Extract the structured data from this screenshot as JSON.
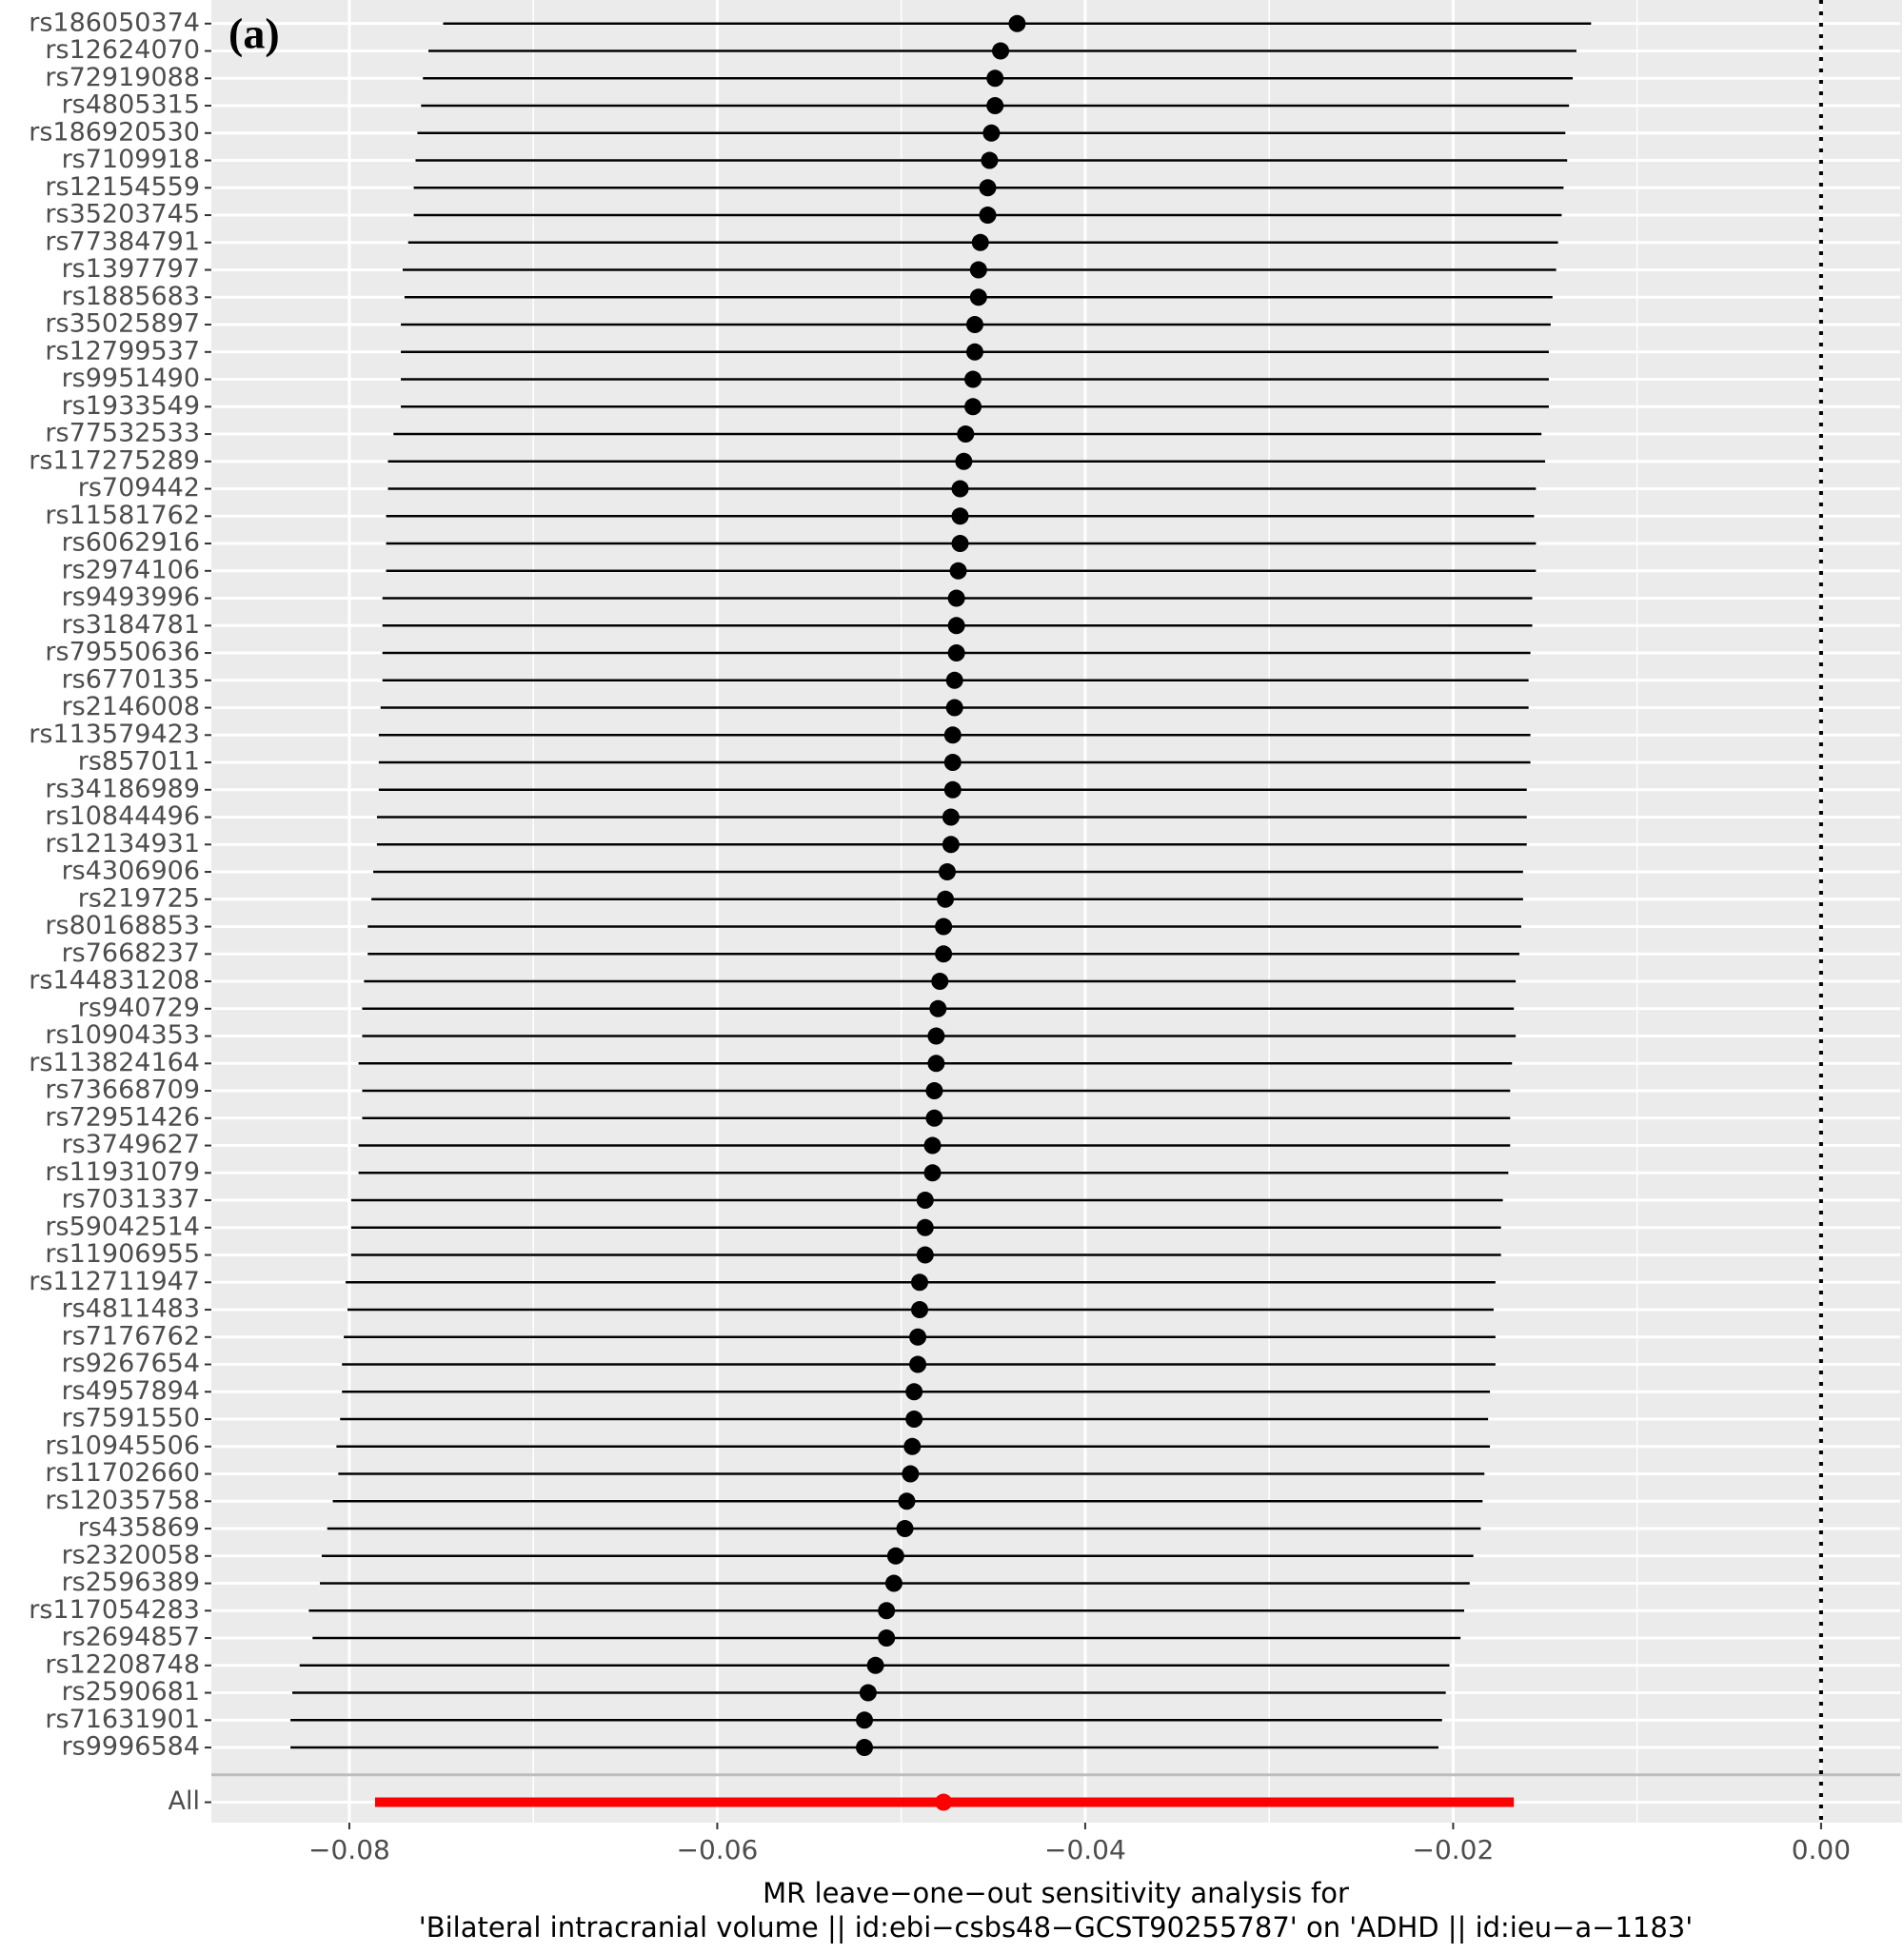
{
  "chart_data": {
    "type": "forest",
    "annotation": "(a)",
    "xlabel": [
      "MR leave−one−out sensitivity analysis for",
      "'Bilateral intracranial volume || id:ebi−csbs48−GCST90255787' on 'ADHD || id:ieu−a−1183'"
    ],
    "categories": [
      "rs186050374",
      "rs12624070",
      "rs72919088",
      "rs4805315",
      "rs186920530",
      "rs7109918",
      "rs12154559",
      "rs35203745",
      "rs77384791",
      "rs1397797",
      "rs1885683",
      "rs35025897",
      "rs12799537",
      "rs9951490",
      "rs1933549",
      "rs77532533",
      "rs117275289",
      "rs709442",
      "rs11581762",
      "rs6062916",
      "rs2974106",
      "rs9493996",
      "rs3184781",
      "rs79550636",
      "rs6770135",
      "rs2146008",
      "rs113579423",
      "rs857011",
      "rs34186989",
      "rs10844496",
      "rs12134931",
      "rs4306906",
      "rs219725",
      "rs80168853",
      "rs7668237",
      "rs144831208",
      "rs940729",
      "rs10904353",
      "rs113824164",
      "rs73668709",
      "rs72951426",
      "rs3749627",
      "rs11931079",
      "rs7031337",
      "rs59042514",
      "rs11906955",
      "rs112711947",
      "rs4811483",
      "rs7176762",
      "rs9267654",
      "rs4957894",
      "rs7591550",
      "rs10945506",
      "rs11702660",
      "rs12035758",
      "rs435869",
      "rs2320058",
      "rs2596389",
      "rs117054283",
      "rs2694857",
      "rs12208748",
      "rs2590681",
      "rs71631901",
      "rs9996584"
    ],
    "values": [
      -0.0437,
      -0.0446,
      -0.0449,
      -0.0449,
      -0.0451,
      -0.0452,
      -0.0453,
      -0.0453,
      -0.0457,
      -0.0458,
      -0.0458,
      -0.046,
      -0.046,
      -0.0461,
      -0.0461,
      -0.0465,
      -0.0466,
      -0.0468,
      -0.0468,
      -0.0468,
      -0.0469,
      -0.047,
      -0.047,
      -0.047,
      -0.0471,
      -0.0471,
      -0.0472,
      -0.0472,
      -0.0472,
      -0.0473,
      -0.0473,
      -0.0475,
      -0.0476,
      -0.0477,
      -0.0477,
      -0.0479,
      -0.048,
      -0.0481,
      -0.0481,
      -0.0482,
      -0.0482,
      -0.0483,
      -0.0483,
      -0.0487,
      -0.0487,
      -0.0487,
      -0.049,
      -0.049,
      -0.0491,
      -0.0491,
      -0.0493,
      -0.0493,
      -0.0494,
      -0.0495,
      -0.0497,
      -0.0498,
      -0.0503,
      -0.0504,
      -0.0508,
      -0.0508,
      -0.0514,
      -0.0518,
      -0.052,
      -0.052
    ],
    "lower": [
      -0.0749,
      -0.0757,
      -0.076,
      -0.0761,
      -0.0763,
      -0.0764,
      -0.0765,
      -0.0765,
      -0.0768,
      -0.0771,
      -0.077,
      -0.0772,
      -0.0772,
      -0.0772,
      -0.0772,
      -0.0776,
      -0.0779,
      -0.0779,
      -0.078,
      -0.078,
      -0.078,
      -0.0782,
      -0.0782,
      -0.0782,
      -0.0782,
      -0.0783,
      -0.0784,
      -0.0784,
      -0.0784,
      -0.0785,
      -0.0785,
      -0.0787,
      -0.0788,
      -0.079,
      -0.079,
      -0.0792,
      -0.0793,
      -0.0793,
      -0.0795,
      -0.0793,
      -0.0793,
      -0.0795,
      -0.0795,
      -0.0799,
      -0.0799,
      -0.0799,
      -0.0802,
      -0.0801,
      -0.0803,
      -0.0804,
      -0.0804,
      -0.0805,
      -0.0807,
      -0.0806,
      -0.0809,
      -0.0812,
      -0.0815,
      -0.0816,
      -0.0822,
      -0.082,
      -0.0827,
      -0.0831,
      -0.0832,
      -0.0832
    ],
    "upper": [
      -0.0125,
      -0.0133,
      -0.0135,
      -0.0137,
      -0.0139,
      -0.0138,
      -0.014,
      -0.0141,
      -0.0143,
      -0.0144,
      -0.0146,
      -0.0147,
      -0.0148,
      -0.0148,
      -0.0148,
      -0.0152,
      -0.015,
      -0.0155,
      -0.0156,
      -0.0155,
      -0.0155,
      -0.0157,
      -0.0157,
      -0.0158,
      -0.0159,
      -0.0159,
      -0.0158,
      -0.0158,
      -0.016,
      -0.016,
      -0.016,
      -0.0162,
      -0.0162,
      -0.0163,
      -0.0164,
      -0.0166,
      -0.0167,
      -0.0166,
      -0.0168,
      -0.0169,
      -0.0169,
      -0.0169,
      -0.017,
      -0.0173,
      -0.0174,
      -0.0174,
      -0.0177,
      -0.0178,
      -0.0177,
      -0.0177,
      -0.018,
      -0.0181,
      -0.018,
      -0.0183,
      -0.0184,
      -0.0185,
      -0.0189,
      -0.0191,
      -0.0194,
      -0.0196,
      -0.0202,
      -0.0204,
      -0.0206,
      -0.0208
    ],
    "color": "#000000",
    "overall": {
      "label": "All",
      "value": -0.0477,
      "lower": -0.0786,
      "upper": -0.0167,
      "color": "#ff0000"
    },
    "xlim": [
      -0.0875,
      0.0043
    ],
    "xticks": [
      {
        "value": -0.08,
        "label": "−0.08"
      },
      {
        "value": -0.06,
        "label": "−0.06"
      },
      {
        "value": -0.04,
        "label": "−0.04"
      },
      {
        "value": -0.02,
        "label": "−0.02"
      },
      {
        "value": 0,
        "label": "0.00"
      }
    ],
    "reference_line": 0,
    "grid": true
  }
}
